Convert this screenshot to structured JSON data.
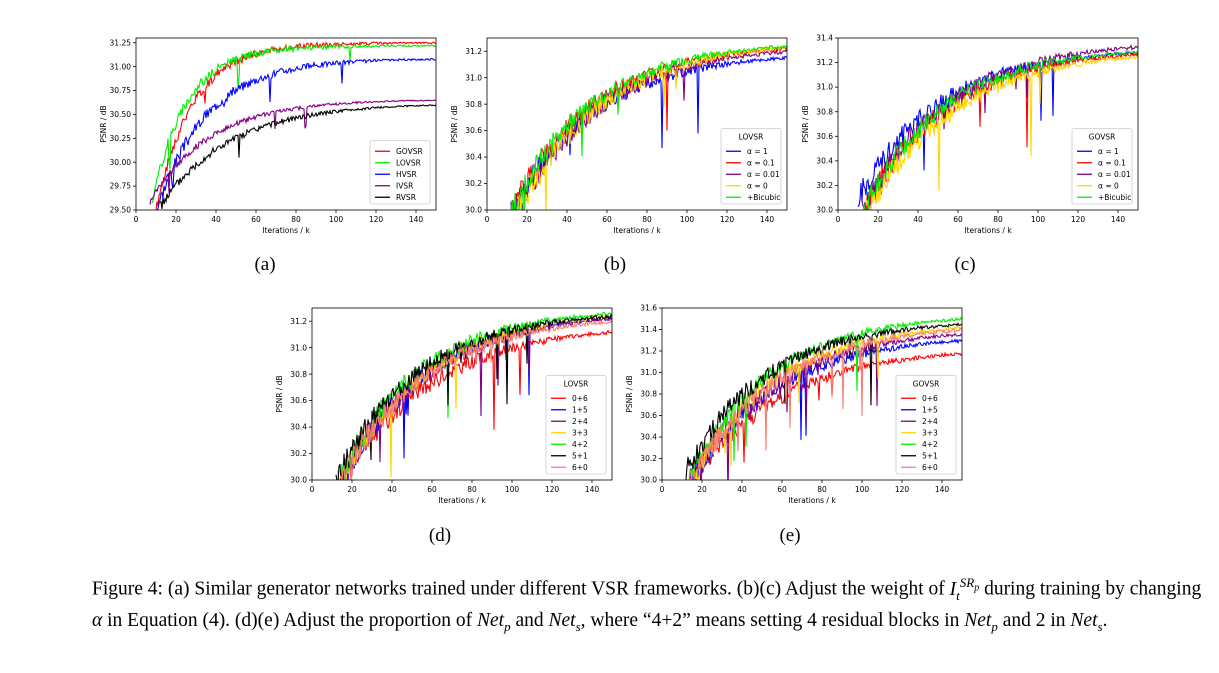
{
  "figure": {
    "caption": {
      "label": "Figure 4:",
      "p1": "(a) Similar generator networks trained under different VSR frameworks. (b)(c) Adjust the weight of",
      "sym_I": "I",
      "sym_t": "t",
      "sym_SR": "SR",
      "sym_p": "p",
      "p2": "during training by changing",
      "sym_alpha": "α",
      "p3": "in Equation (4). (d)(e) Adjust the proportion of",
      "net_p": "Net",
      "net_p_sub": "p",
      "p4": "and",
      "net_s": "Net",
      "net_s_sub": "s",
      "p5": ", where “4+2” means setting 4 residual blocks in",
      "p6": "and 2 in",
      "p7": "."
    }
  },
  "chart_data": [
    {
      "id": "a",
      "panel_label": "(a)",
      "type": "line",
      "xlabel": "Iterations / k",
      "ylabel": "PSNR / dB",
      "xlim": [
        0,
        150
      ],
      "ylim": [
        29.5,
        31.3
      ],
      "xticks": [
        0,
        20,
        40,
        60,
        80,
        100,
        120,
        140
      ],
      "yticks": [
        "29.50",
        "29.75",
        "30.00",
        "30.25",
        "30.50",
        "30.75",
        "31.00",
        "31.25"
      ],
      "legend_position": "lower-right",
      "series": [
        {
          "name": "GOVSR",
          "color": "#ff0000",
          "start": [
            10,
            29.5
          ],
          "end": [
            150,
            31.25
          ],
          "rise": 18,
          "noise": 0.12,
          "seed": 1
        },
        {
          "name": "LOVSR",
          "color": "#00ee00",
          "start": [
            8,
            29.6
          ],
          "end": [
            150,
            31.22
          ],
          "rise": 17,
          "noise": 0.12,
          "seed": 2
        },
        {
          "name": "HVSR",
          "color": "#0000ff",
          "start": [
            10,
            29.5
          ],
          "end": [
            150,
            31.08
          ],
          "rise": 25,
          "noise": 0.14,
          "seed": 3
        },
        {
          "name": "IVSR",
          "color": "#800080",
          "start": [
            7,
            29.6
          ],
          "end": [
            150,
            30.65
          ],
          "rise": 30,
          "noise": 0.08,
          "seed": 4
        },
        {
          "name": "RVSR",
          "color": "#000000",
          "start": [
            12,
            29.55
          ],
          "end": [
            150,
            30.6
          ],
          "rise": 35,
          "noise": 0.1,
          "seed": 5
        }
      ]
    },
    {
      "id": "b",
      "panel_label": "(b)",
      "type": "line",
      "xlabel": "Iterations / k",
      "ylabel": "PSNR / dB",
      "xlim": [
        0,
        150
      ],
      "ylim": [
        30.0,
        31.3
      ],
      "xticks": [
        0,
        20,
        40,
        60,
        80,
        100,
        120,
        140
      ],
      "yticks": [
        "30.0",
        "30.2",
        "30.4",
        "30.6",
        "30.8",
        "31.0",
        "31.2"
      ],
      "legend_title": "LOVSR",
      "legend_position": "lower-right",
      "series": [
        {
          "name": "α = 1",
          "color": "#0000ff",
          "start": [
            12,
            30.0
          ],
          "end": [
            150,
            31.15
          ],
          "rise": 40,
          "noise": 0.2,
          "seed": 11
        },
        {
          "name": "α = 0.1",
          "color": "#ff0000",
          "start": [
            12,
            30.0
          ],
          "end": [
            150,
            31.22
          ],
          "rise": 40,
          "noise": 0.2,
          "seed": 12
        },
        {
          "name": "α = 0.01",
          "color": "#800080",
          "start": [
            14,
            30.0
          ],
          "end": [
            150,
            31.2
          ],
          "rise": 42,
          "noise": 0.2,
          "seed": 13
        },
        {
          "name": "α = 0",
          "color": "#ffd700",
          "start": [
            15,
            30.0
          ],
          "end": [
            150,
            31.23
          ],
          "rise": 42,
          "noise": 0.22,
          "seed": 14
        },
        {
          "name": "+Bicubic",
          "color": "#00ee00",
          "start": [
            12,
            30.0
          ],
          "end": [
            150,
            31.24
          ],
          "rise": 40,
          "noise": 0.18,
          "seed": 15
        }
      ]
    },
    {
      "id": "c",
      "panel_label": "(c)",
      "type": "line",
      "xlabel": "Iterations / k",
      "ylabel": "PSNR / dB",
      "xlim": [
        0,
        150
      ],
      "ylim": [
        30.0,
        31.4
      ],
      "xticks": [
        0,
        20,
        40,
        60,
        80,
        100,
        120,
        140
      ],
      "yticks": [
        "30.0",
        "30.2",
        "30.4",
        "30.6",
        "30.8",
        "31.0",
        "31.2",
        "31.4"
      ],
      "legend_title": "GOVSR",
      "legend_position": "lower-right",
      "series": [
        {
          "name": "α = 1",
          "color": "#0000ff",
          "start": [
            10,
            30.1
          ],
          "end": [
            150,
            31.28
          ],
          "rise": 40,
          "noise": 0.22,
          "seed": 21
        },
        {
          "name": "α = 0.1",
          "color": "#ff0000",
          "start": [
            12,
            30.0
          ],
          "end": [
            150,
            31.27
          ],
          "rise": 42,
          "noise": 0.22,
          "seed": 22
        },
        {
          "name": "α = 0.01",
          "color": "#800080",
          "start": [
            12,
            30.0
          ],
          "end": [
            150,
            31.33
          ],
          "rise": 42,
          "noise": 0.22,
          "seed": 23
        },
        {
          "name": "α = 0",
          "color": "#ffd700",
          "start": [
            14,
            30.0
          ],
          "end": [
            150,
            31.25
          ],
          "rise": 44,
          "noise": 0.22,
          "seed": 24
        },
        {
          "name": "+Bicubic",
          "color": "#00ee00",
          "start": [
            12,
            30.0
          ],
          "end": [
            150,
            31.29
          ],
          "rise": 40,
          "noise": 0.2,
          "seed": 25
        }
      ]
    },
    {
      "id": "d",
      "panel_label": "(d)",
      "type": "line",
      "xlabel": "Iterations / k",
      "ylabel": "PSNR / dB",
      "xlim": [
        0,
        150
      ],
      "ylim": [
        30.0,
        31.3
      ],
      "xticks": [
        0,
        20,
        40,
        60,
        80,
        100,
        120,
        140
      ],
      "yticks": [
        "30.0",
        "30.2",
        "30.4",
        "30.6",
        "30.8",
        "31.0",
        "31.2"
      ],
      "legend_title": "LOVSR",
      "legend_position": "lower-right",
      "series": [
        {
          "name": "0+6",
          "color": "#ff0000",
          "start": [
            14,
            30.0
          ],
          "end": [
            150,
            31.12
          ],
          "rise": 45,
          "noise": 0.2,
          "seed": 31
        },
        {
          "name": "1+5",
          "color": "#0000ff",
          "start": [
            14,
            30.0
          ],
          "end": [
            150,
            31.23
          ],
          "rise": 42,
          "noise": 0.2,
          "seed": 32
        },
        {
          "name": "2+4",
          "color": "#800080",
          "start": [
            14,
            30.0
          ],
          "end": [
            150,
            31.22
          ],
          "rise": 42,
          "noise": 0.22,
          "seed": 33
        },
        {
          "name": "3+3",
          "color": "#ffd700",
          "start": [
            14,
            30.0
          ],
          "end": [
            150,
            31.24
          ],
          "rise": 42,
          "noise": 0.2,
          "seed": 34
        },
        {
          "name": "4+2",
          "color": "#00ee00",
          "start": [
            13,
            30.0
          ],
          "end": [
            150,
            31.26
          ],
          "rise": 40,
          "noise": 0.2,
          "seed": 35
        },
        {
          "name": "5+1",
          "color": "#000000",
          "start": [
            12,
            30.0
          ],
          "end": [
            150,
            31.24
          ],
          "rise": 40,
          "noise": 0.2,
          "seed": 36
        },
        {
          "name": "6+0",
          "color": "#fa8072",
          "start": [
            14,
            30.0
          ],
          "end": [
            150,
            31.2
          ],
          "rise": 42,
          "noise": 0.2,
          "seed": 37
        }
      ]
    },
    {
      "id": "e",
      "panel_label": "(e)",
      "type": "line",
      "xlabel": "Iterations / k",
      "ylabel": "PSNR / dB",
      "xlim": [
        0,
        150
      ],
      "ylim": [
        30.0,
        31.6
      ],
      "xticks": [
        0,
        20,
        40,
        60,
        80,
        100,
        120,
        140
      ],
      "yticks": [
        "30.0",
        "30.2",
        "30.4",
        "30.6",
        "30.8",
        "31.0",
        "31.2",
        "31.4",
        "31.6"
      ],
      "legend_title": "GOVSR",
      "legend_position": "lower-right",
      "series": [
        {
          "name": "0+6",
          "color": "#ff0000",
          "start": [
            14,
            30.0
          ],
          "end": [
            150,
            31.18
          ],
          "rise": 45,
          "noise": 0.22,
          "seed": 41
        },
        {
          "name": "1+5",
          "color": "#0000ff",
          "start": [
            14,
            30.0
          ],
          "end": [
            150,
            31.3
          ],
          "rise": 42,
          "noise": 0.22,
          "seed": 42
        },
        {
          "name": "2+4",
          "color": "#800080",
          "start": [
            14,
            30.0
          ],
          "end": [
            150,
            31.36
          ],
          "rise": 42,
          "noise": 0.24,
          "seed": 43
        },
        {
          "name": "3+3",
          "color": "#ffd700",
          "start": [
            14,
            30.0
          ],
          "end": [
            150,
            31.42
          ],
          "rise": 42,
          "noise": 0.22,
          "seed": 44
        },
        {
          "name": "4+2",
          "color": "#00ee00",
          "start": [
            13,
            30.0
          ],
          "end": [
            150,
            31.5
          ],
          "rise": 40,
          "noise": 0.2,
          "seed": 45
        },
        {
          "name": "5+1",
          "color": "#000000",
          "start": [
            12,
            30.1
          ],
          "end": [
            150,
            31.45
          ],
          "rise": 40,
          "noise": 0.22,
          "seed": 46
        },
        {
          "name": "6+0",
          "color": "#fa8072",
          "start": [
            14,
            30.0
          ],
          "end": [
            150,
            31.4
          ],
          "rise": 42,
          "noise": 0.22,
          "seed": 47
        }
      ]
    }
  ]
}
